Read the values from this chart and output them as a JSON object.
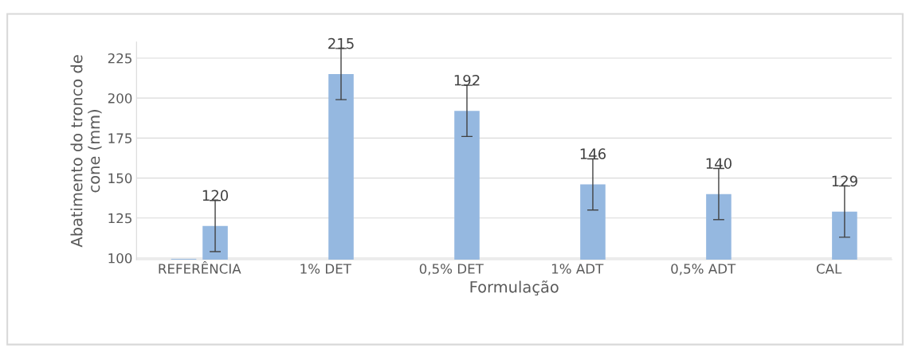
{
  "chart_data": {
    "type": "bar",
    "xlabel": "Formulação",
    "ylabel": "Abatimento do tronco de\ncone (mm)",
    "categories": [
      "REFERÊNCIA",
      "1% DET",
      "0,5% DET",
      "1% ADT",
      "0,5% ADT",
      "CAL"
    ],
    "series": [
      {
        "color": "#95b8e0",
        "values": [
          99.5,
          null,
          null,
          null,
          null,
          null
        ]
      },
      {
        "color": "#95b8e0",
        "values": [
          120,
          215,
          192,
          146,
          140,
          129
        ],
        "errors": [
          16,
          16,
          16,
          16,
          16,
          16
        ],
        "value_labels": [
          "120",
          "215",
          "192",
          "146",
          "140",
          "129"
        ]
      }
    ],
    "ylim": [
      99,
      235
    ],
    "yticks": [
      100,
      125,
      150,
      175,
      200,
      225
    ],
    "grid": "y"
  }
}
